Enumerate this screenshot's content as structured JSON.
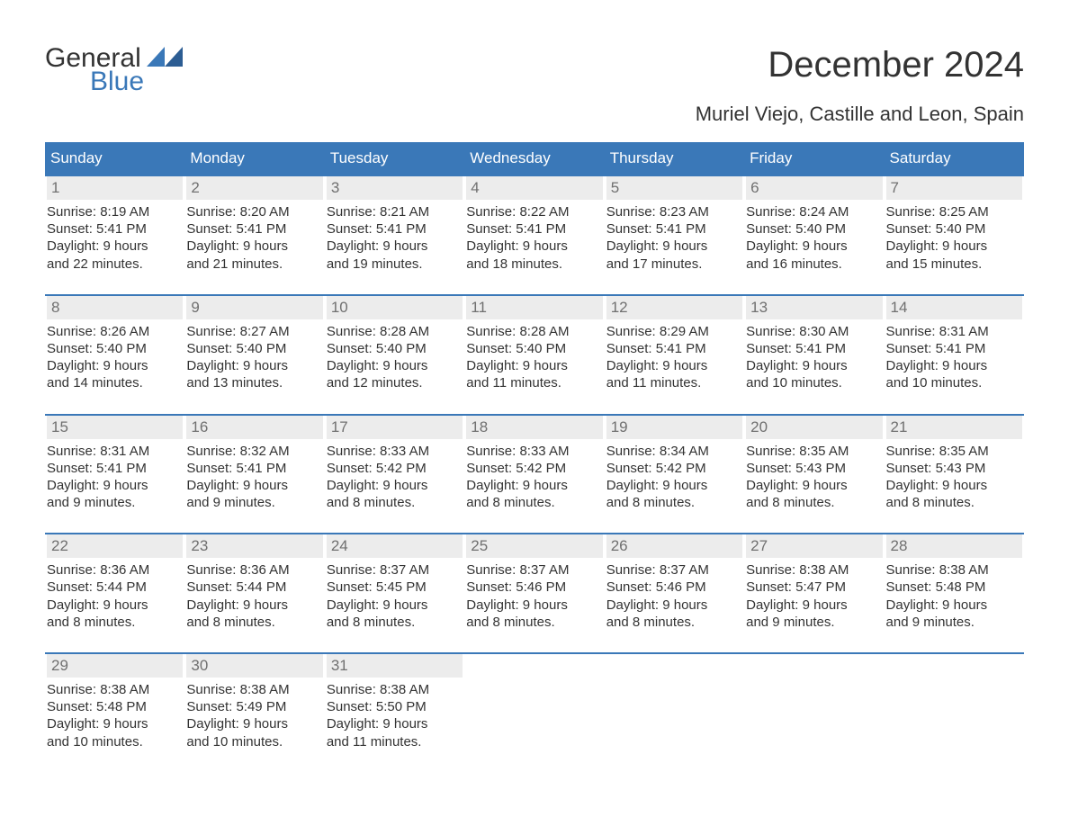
{
  "logo": {
    "part1": "General",
    "part2": "Blue"
  },
  "title": "December 2024",
  "subtitle": "Muriel Viejo, Castille and Leon, Spain",
  "colors": {
    "header_bg": "#3a78b8",
    "header_text": "#ffffff",
    "week_border": "#3a78b8",
    "daynum_bg": "#ececec",
    "daynum_text": "#707070",
    "body_text": "#333333",
    "logo_blue": "#3a78b8",
    "background": "#ffffff"
  },
  "typography": {
    "title_fontsize": 40,
    "subtitle_fontsize": 22,
    "dow_fontsize": 17,
    "daynum_fontsize": 17,
    "info_fontsize": 15,
    "logo_fontsize": 30
  },
  "days_of_week": [
    "Sunday",
    "Monday",
    "Tuesday",
    "Wednesday",
    "Thursday",
    "Friday",
    "Saturday"
  ],
  "weeks": [
    [
      {
        "n": "1",
        "sunrise": "8:19 AM",
        "sunset": "5:41 PM",
        "dl_h": "9",
        "dl_m": "22"
      },
      {
        "n": "2",
        "sunrise": "8:20 AM",
        "sunset": "5:41 PM",
        "dl_h": "9",
        "dl_m": "21"
      },
      {
        "n": "3",
        "sunrise": "8:21 AM",
        "sunset": "5:41 PM",
        "dl_h": "9",
        "dl_m": "19"
      },
      {
        "n": "4",
        "sunrise": "8:22 AM",
        "sunset": "5:41 PM",
        "dl_h": "9",
        "dl_m": "18"
      },
      {
        "n": "5",
        "sunrise": "8:23 AM",
        "sunset": "5:41 PM",
        "dl_h": "9",
        "dl_m": "17"
      },
      {
        "n": "6",
        "sunrise": "8:24 AM",
        "sunset": "5:40 PM",
        "dl_h": "9",
        "dl_m": "16"
      },
      {
        "n": "7",
        "sunrise": "8:25 AM",
        "sunset": "5:40 PM",
        "dl_h": "9",
        "dl_m": "15"
      }
    ],
    [
      {
        "n": "8",
        "sunrise": "8:26 AM",
        "sunset": "5:40 PM",
        "dl_h": "9",
        "dl_m": "14"
      },
      {
        "n": "9",
        "sunrise": "8:27 AM",
        "sunset": "5:40 PM",
        "dl_h": "9",
        "dl_m": "13"
      },
      {
        "n": "10",
        "sunrise": "8:28 AM",
        "sunset": "5:40 PM",
        "dl_h": "9",
        "dl_m": "12"
      },
      {
        "n": "11",
        "sunrise": "8:28 AM",
        "sunset": "5:40 PM",
        "dl_h": "9",
        "dl_m": "11"
      },
      {
        "n": "12",
        "sunrise": "8:29 AM",
        "sunset": "5:41 PM",
        "dl_h": "9",
        "dl_m": "11"
      },
      {
        "n": "13",
        "sunrise": "8:30 AM",
        "sunset": "5:41 PM",
        "dl_h": "9",
        "dl_m": "10"
      },
      {
        "n": "14",
        "sunrise": "8:31 AM",
        "sunset": "5:41 PM",
        "dl_h": "9",
        "dl_m": "10"
      }
    ],
    [
      {
        "n": "15",
        "sunrise": "8:31 AM",
        "sunset": "5:41 PM",
        "dl_h": "9",
        "dl_m": "9"
      },
      {
        "n": "16",
        "sunrise": "8:32 AM",
        "sunset": "5:41 PM",
        "dl_h": "9",
        "dl_m": "9"
      },
      {
        "n": "17",
        "sunrise": "8:33 AM",
        "sunset": "5:42 PM",
        "dl_h": "9",
        "dl_m": "8"
      },
      {
        "n": "18",
        "sunrise": "8:33 AM",
        "sunset": "5:42 PM",
        "dl_h": "9",
        "dl_m": "8"
      },
      {
        "n": "19",
        "sunrise": "8:34 AM",
        "sunset": "5:42 PM",
        "dl_h": "9",
        "dl_m": "8"
      },
      {
        "n": "20",
        "sunrise": "8:35 AM",
        "sunset": "5:43 PM",
        "dl_h": "9",
        "dl_m": "8"
      },
      {
        "n": "21",
        "sunrise": "8:35 AM",
        "sunset": "5:43 PM",
        "dl_h": "9",
        "dl_m": "8"
      }
    ],
    [
      {
        "n": "22",
        "sunrise": "8:36 AM",
        "sunset": "5:44 PM",
        "dl_h": "9",
        "dl_m": "8"
      },
      {
        "n": "23",
        "sunrise": "8:36 AM",
        "sunset": "5:44 PM",
        "dl_h": "9",
        "dl_m": "8"
      },
      {
        "n": "24",
        "sunrise": "8:37 AM",
        "sunset": "5:45 PM",
        "dl_h": "9",
        "dl_m": "8"
      },
      {
        "n": "25",
        "sunrise": "8:37 AM",
        "sunset": "5:46 PM",
        "dl_h": "9",
        "dl_m": "8"
      },
      {
        "n": "26",
        "sunrise": "8:37 AM",
        "sunset": "5:46 PM",
        "dl_h": "9",
        "dl_m": "8"
      },
      {
        "n": "27",
        "sunrise": "8:38 AM",
        "sunset": "5:47 PM",
        "dl_h": "9",
        "dl_m": "9"
      },
      {
        "n": "28",
        "sunrise": "8:38 AM",
        "sunset": "5:48 PM",
        "dl_h": "9",
        "dl_m": "9"
      }
    ],
    [
      {
        "n": "29",
        "sunrise": "8:38 AM",
        "sunset": "5:48 PM",
        "dl_h": "9",
        "dl_m": "10"
      },
      {
        "n": "30",
        "sunrise": "8:38 AM",
        "sunset": "5:49 PM",
        "dl_h": "9",
        "dl_m": "10"
      },
      {
        "n": "31",
        "sunrise": "8:38 AM",
        "sunset": "5:50 PM",
        "dl_h": "9",
        "dl_m": "11"
      },
      null,
      null,
      null,
      null
    ]
  ],
  "labels": {
    "sunrise": "Sunrise: ",
    "sunset": "Sunset: ",
    "daylight1": "Daylight: ",
    "daylight2": " hours",
    "daylight3": "and ",
    "daylight4": " minutes."
  }
}
